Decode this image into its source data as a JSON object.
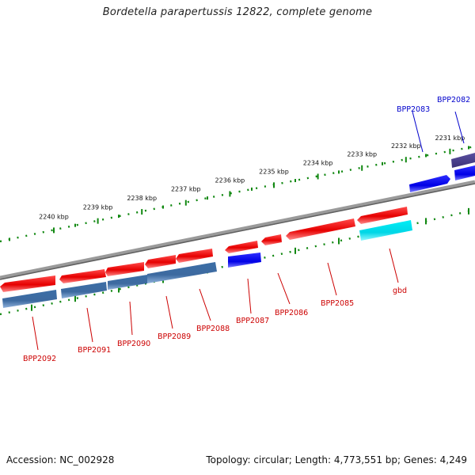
{
  "title": "Bordetella parapertussis 12822, complete genome",
  "footer": {
    "accession": "Accession: NC_002928",
    "topology": "Topology: circular; Length: 4,773,551 bp; Genes: 4,249"
  },
  "ruler": {
    "unit": "kbp",
    "labels": [
      "2240 kbp",
      "2239 kbp",
      "2238 kbp",
      "2237 kbp",
      "2236 kbp",
      "2235 kbp",
      "2234 kbp",
      "2233 kbp",
      "2232 kbp",
      "2231 kbp"
    ]
  },
  "colors": {
    "background": "#ffffff",
    "backbone": "#7a7a7a",
    "ruler": "#118811",
    "gene_red": "#ee1111",
    "gene_blue": "#0a0aee",
    "gene_steel": "#4a7ab0",
    "gene_cyan": "#11e8f0",
    "gene_purple": "#4a3f8f",
    "label_red": "#cc0000",
    "label_blue": "#0000cc"
  },
  "genes": [
    {
      "label": "BPP2082",
      "color": "label_blue"
    },
    {
      "label": "BPP2083",
      "color": "label_blue"
    },
    {
      "label": "gbd",
      "color": "label_red"
    },
    {
      "label": "BPP2085",
      "color": "label_red"
    },
    {
      "label": "BPP2086",
      "color": "label_red"
    },
    {
      "label": "BPP2087",
      "color": "label_red"
    },
    {
      "label": "BPP2088",
      "color": "label_red"
    },
    {
      "label": "BPP2089",
      "color": "label_red"
    },
    {
      "label": "BPP2090",
      "color": "label_red"
    },
    {
      "label": "BPP2091",
      "color": "label_red"
    },
    {
      "label": "BPP2092",
      "color": "label_red"
    }
  ]
}
